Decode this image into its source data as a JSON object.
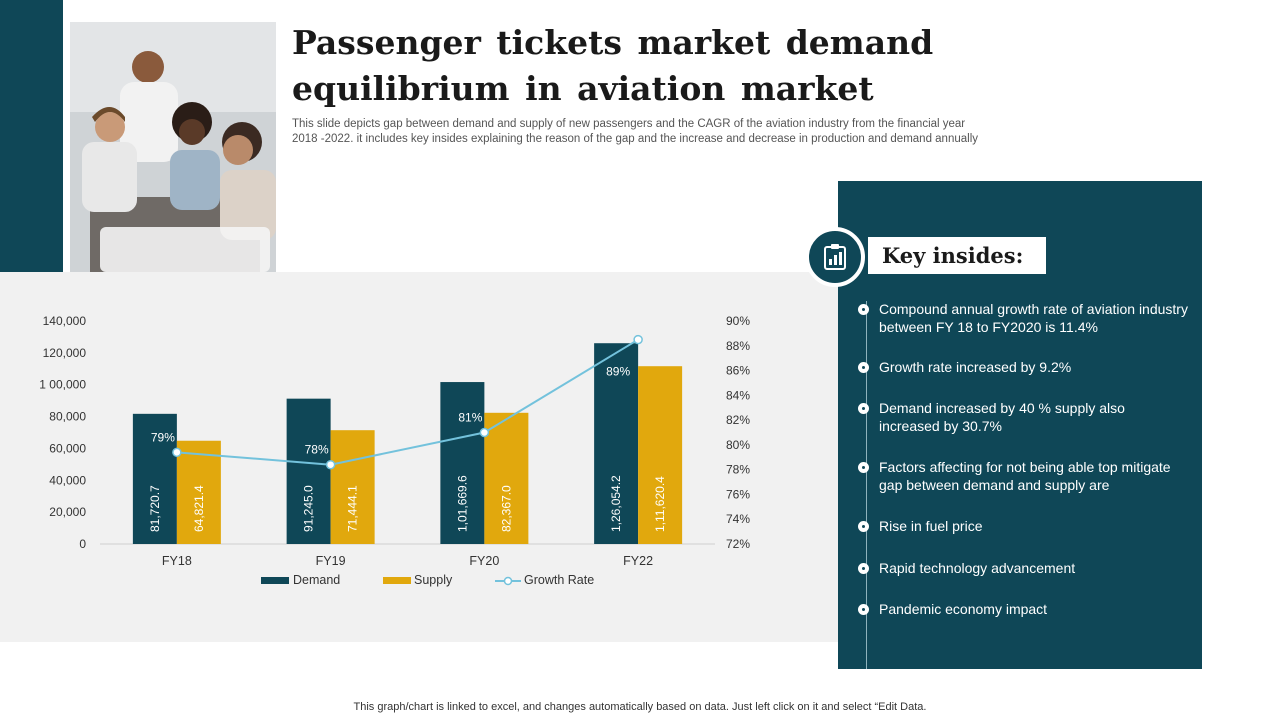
{
  "title": "Passenger tickets market demand equilibrium in aviation market",
  "description": "This slide depicts gap between demand and supply of new passengers and the CAGR of the aviation industry from the financial year 2018 -2022. it includes key insides explaining the reason of the gap and the increase and decrease in production and demand annually",
  "key_insights": {
    "heading": "Key insides:",
    "icon": "clipboard-chart-icon",
    "items": [
      "Compound annual growth rate of aviation industry between FY 18 to FY2020 is 11.4%",
      "Growth rate increased by 9.2%",
      "Demand increased by 40 % supply also increased by 30.7%",
      "Factors affecting for not being able top mitigate gap between demand and supply are",
      "Rise in fuel price",
      "Rapid technology advancement",
      "Pandemic economy impact"
    ]
  },
  "footer": "This graph/chart is linked to excel,  and changes automatically based on data. Just left click on it and select “Edit Data.",
  "colors": {
    "brand": "#0f4757",
    "supply": "#e1a80d",
    "growth_line": "#73c2dc",
    "panel_gray": "#f1f1f1"
  },
  "chart_data": {
    "type": "bar",
    "categories": [
      "FY18",
      "FY19",
      "FY20",
      "FY22"
    ],
    "series": [
      {
        "name": "Demand",
        "kind": "bar",
        "axis": "left",
        "values": [
          81720.7,
          91245.0,
          101669.6,
          126054.2
        ],
        "labels": [
          "81,720.7",
          "91,245.0",
          "1,01,669.6",
          "1,26,054.2"
        ]
      },
      {
        "name": "Supply",
        "kind": "bar",
        "axis": "left",
        "values": [
          64821.4,
          71444.1,
          82367.0,
          111620.4
        ],
        "labels": [
          "64,821.4",
          "71,444.1",
          "82,367.0",
          "1,11,620.4"
        ]
      },
      {
        "name": "Growth Rate",
        "kind": "line",
        "axis": "right",
        "values": [
          79.4,
          78.4,
          81.0,
          88.5
        ],
        "labels": [
          "79%",
          "78%",
          "81%",
          "89%"
        ]
      }
    ],
    "left_axis": {
      "min": 0,
      "max": 140000,
      "ticks": [
        0,
        20000,
        40000,
        60000,
        80000,
        100000,
        120000,
        140000
      ],
      "tick_labels": [
        "0",
        "20,000",
        "40,000",
        "60,000",
        "80,000",
        "1 00,000",
        "120,000",
        "140,000"
      ]
    },
    "right_axis": {
      "min": 72,
      "max": 90,
      "ticks": [
        72,
        74,
        76,
        78,
        80,
        82,
        84,
        86,
        88,
        90
      ],
      "tick_labels": [
        "72%",
        "74%",
        "76%",
        "78%",
        "80%",
        "82%",
        "84%",
        "86%",
        "88%",
        "90%"
      ]
    },
    "legend": [
      "Demand",
      "Supply",
      "Growth Rate"
    ],
    "legend_position": "bottom",
    "grid": false
  }
}
